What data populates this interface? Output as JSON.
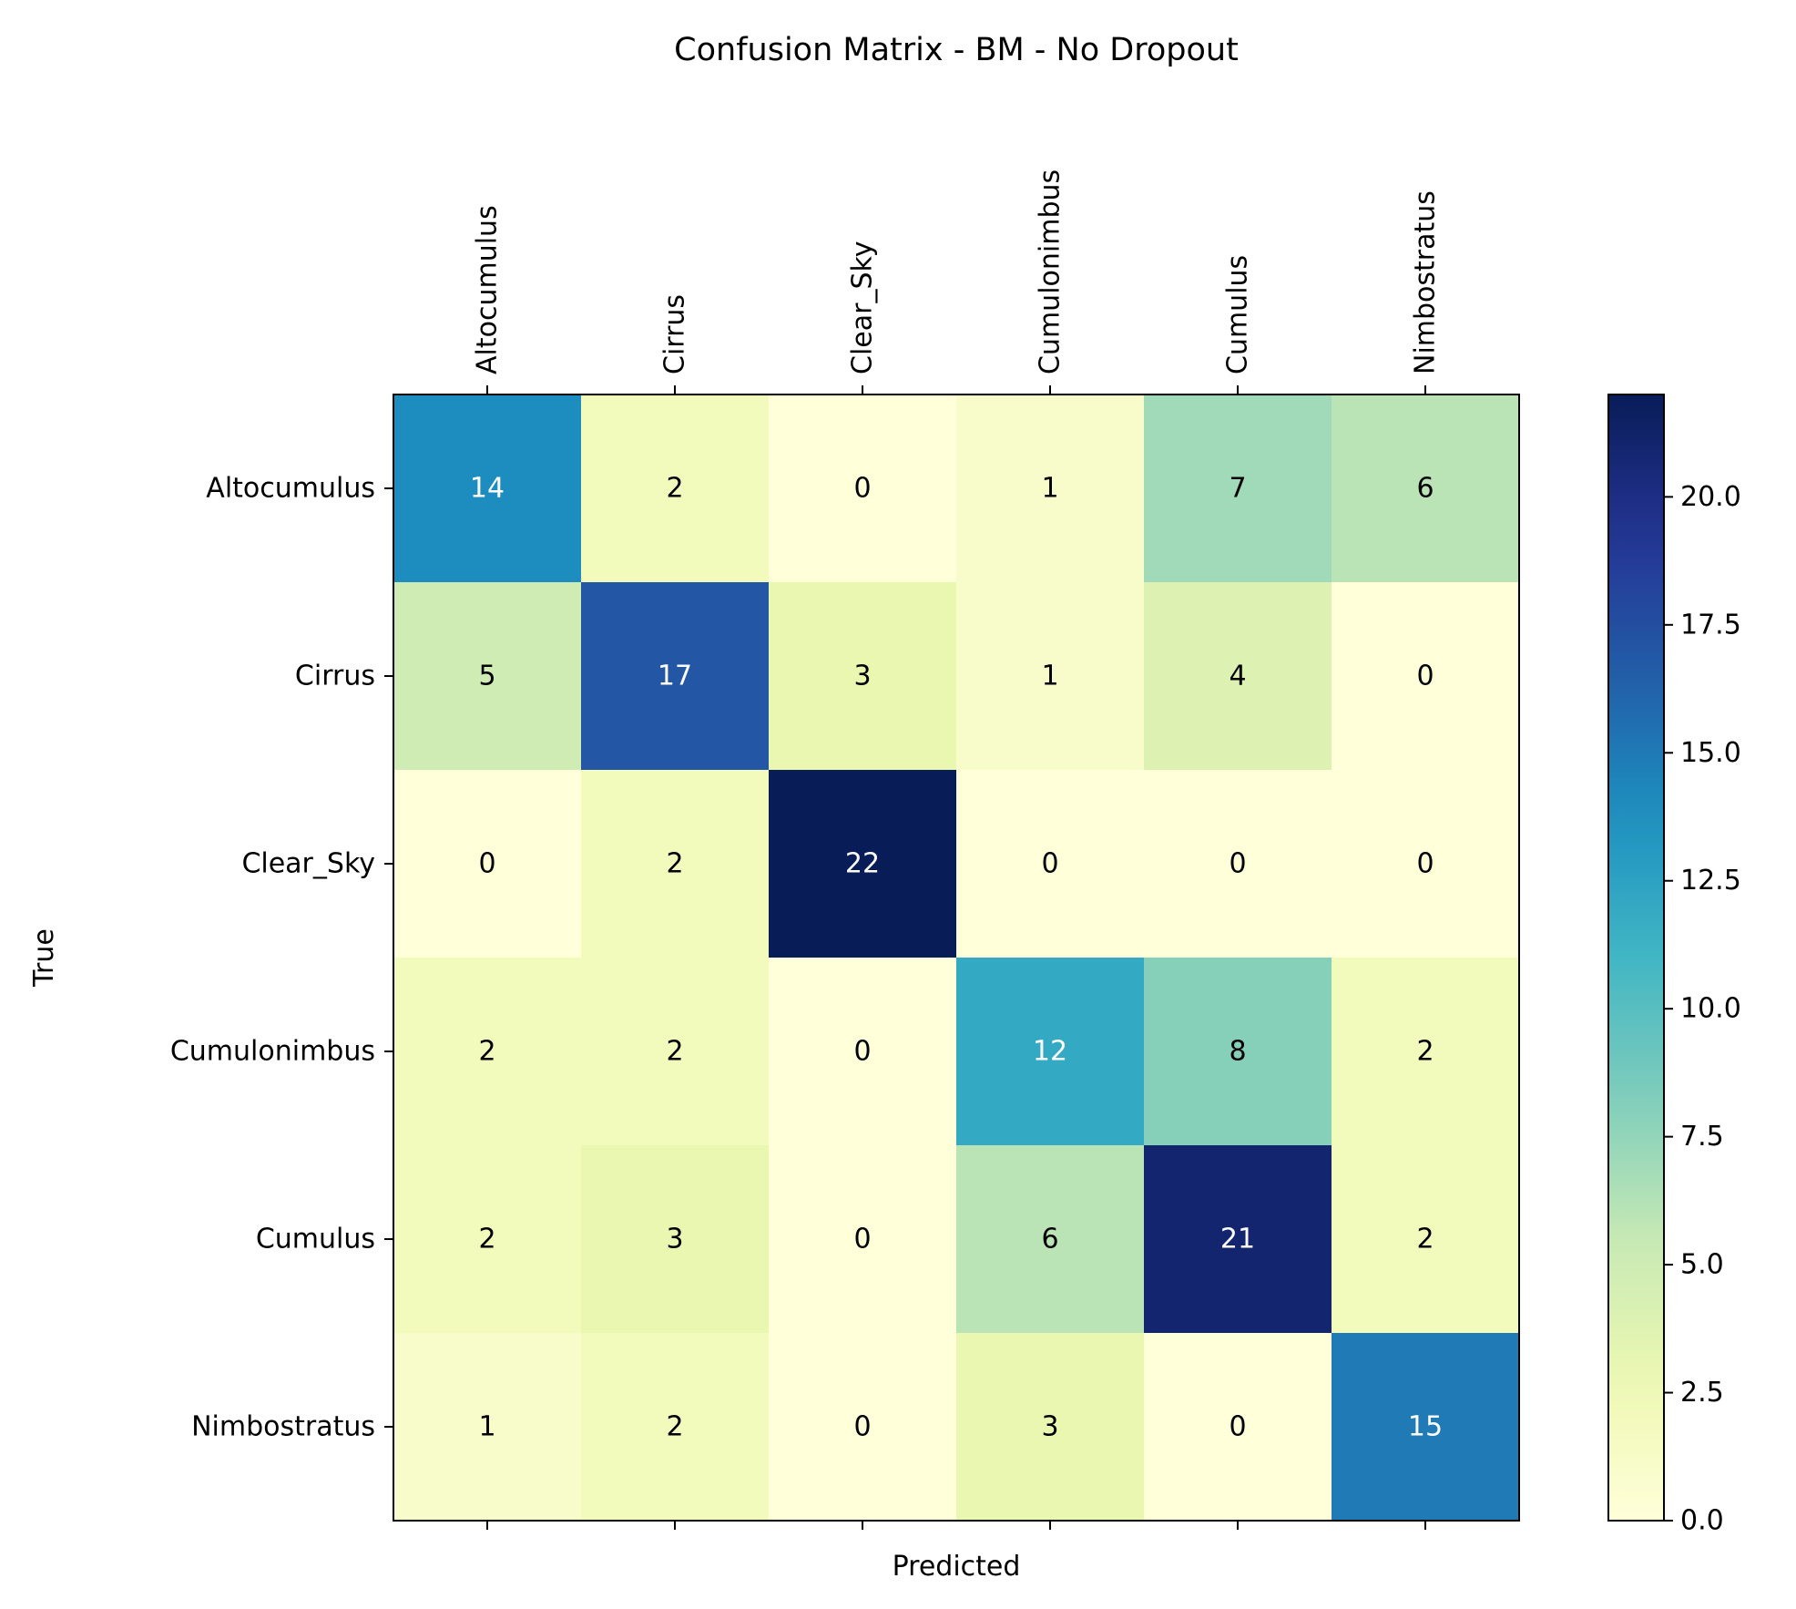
{
  "chart_data": {
    "type": "heatmap",
    "title": "Confusion Matrix - BM - No Dropout",
    "xlabel": "Predicted",
    "ylabel": "True",
    "x_categories": [
      "Altocumulus",
      "Cirrus",
      "Clear_Sky",
      "Cumulonimbus",
      "Cumulus",
      "Nimbostratus"
    ],
    "y_categories": [
      "Altocumulus",
      "Cirrus",
      "Clear_Sky",
      "Cumulonimbus",
      "Cumulus",
      "Nimbostratus"
    ],
    "matrix": [
      [
        14,
        2,
        0,
        1,
        7,
        6
      ],
      [
        5,
        17,
        3,
        1,
        4,
        0
      ],
      [
        0,
        2,
        22,
        0,
        0,
        0
      ],
      [
        2,
        2,
        0,
        12,
        8,
        2
      ],
      [
        2,
        3,
        0,
        6,
        21,
        2
      ],
      [
        1,
        2,
        0,
        3,
        0,
        15
      ]
    ],
    "colormap": "YlGnBu",
    "colorbar": {
      "range": [
        0,
        22
      ],
      "ticks": [
        0,
        2.5,
        5,
        7.5,
        10,
        12.5,
        15,
        17.5,
        20
      ],
      "tick_labels": [
        "0.0",
        "2.5",
        "5.0",
        "7.5",
        "10.0",
        "12.5",
        "15.0",
        "17.5",
        "20.0"
      ]
    },
    "x_tick_position": "top",
    "grid": false
  }
}
